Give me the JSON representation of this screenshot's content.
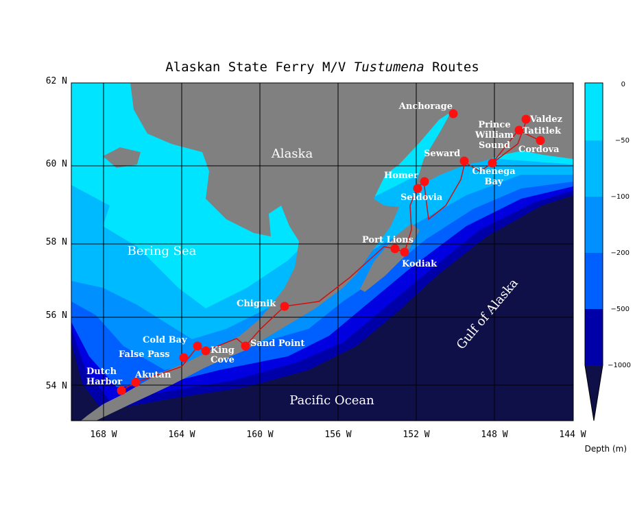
{
  "title": {
    "prefix": "Alaskan State Ferry M/V ",
    "ship": "Tustumena",
    "suffix": " Routes"
  },
  "latitude_labels": [
    "62 N",
    "60 N",
    "58 N",
    "56 N",
    "54 N"
  ],
  "longitude_labels": [
    "168 W",
    "164 W",
    "160 W",
    "156 W",
    "152 W",
    "148 W",
    "144 W"
  ],
  "regions": [
    "Alaska",
    "Bering Sea",
    "Pacific Ocean",
    "Gulf of Alaska"
  ],
  "ports": [
    {
      "lines": [
        "Anchorage"
      ]
    },
    {
      "lines": [
        "Valdez"
      ]
    },
    {
      "lines": [
        "Prince",
        "William",
        "Sound"
      ]
    },
    {
      "lines": [
        "Tatitlek"
      ]
    },
    {
      "lines": [
        "Cordova"
      ]
    },
    {
      "lines": [
        "Seward"
      ]
    },
    {
      "lines": [
        "Chenega",
        "Bay"
      ]
    },
    {
      "lines": [
        "Homer"
      ]
    },
    {
      "lines": [
        "Seldovia"
      ]
    },
    {
      "lines": [
        "Port Lions"
      ]
    },
    {
      "lines": [
        "Kodiak"
      ]
    },
    {
      "lines": [
        "Chignik"
      ]
    },
    {
      "lines": [
        "Cold Bay"
      ]
    },
    {
      "lines": [
        "False Pass"
      ]
    },
    {
      "lines": [
        "King",
        "Cove"
      ]
    },
    {
      "lines": [
        "Sand Point"
      ]
    },
    {
      "lines": [
        "Dutch",
        "Harbor"
      ]
    },
    {
      "lines": [
        "Akutan"
      ]
    }
  ],
  "colorbar": {
    "labels": [
      "0",
      "−50",
      "−100",
      "−200",
      "−500",
      "−1000"
    ],
    "title": "Depth (m)"
  }
}
